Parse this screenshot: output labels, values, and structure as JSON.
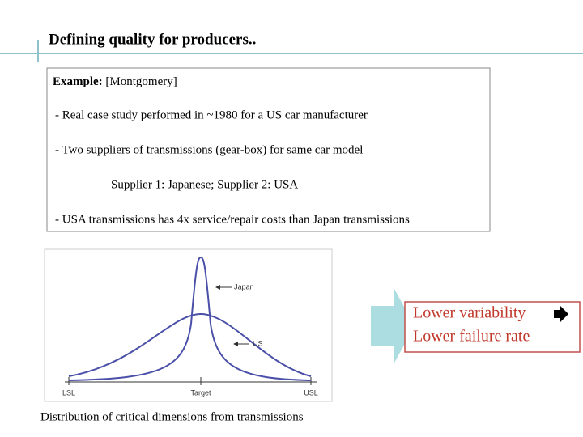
{
  "header": {
    "title": "Defining quality for producers.."
  },
  "example_box": {
    "label": "Example:",
    "source": "[Montgomery]",
    "lines": [
      "- Real case study performed in ~1980 for a US car manufacturer",
      "- Two suppliers of transmissions (gear-box) for same car model",
      "Supplier 1: Japanese; Supplier 2: USA",
      "- USA transmissions has 4x service/repair costs than Japan transmissions"
    ]
  },
  "figure": {
    "curve_labels": [
      "Japan",
      "US"
    ],
    "axis_labels": [
      "LSL",
      "Target",
      "USL"
    ],
    "caption": "Distribution of critical dimensions from transmissions"
  },
  "callout": {
    "lines": [
      "Lower variability",
      "Lower failure rate"
    ]
  }
}
